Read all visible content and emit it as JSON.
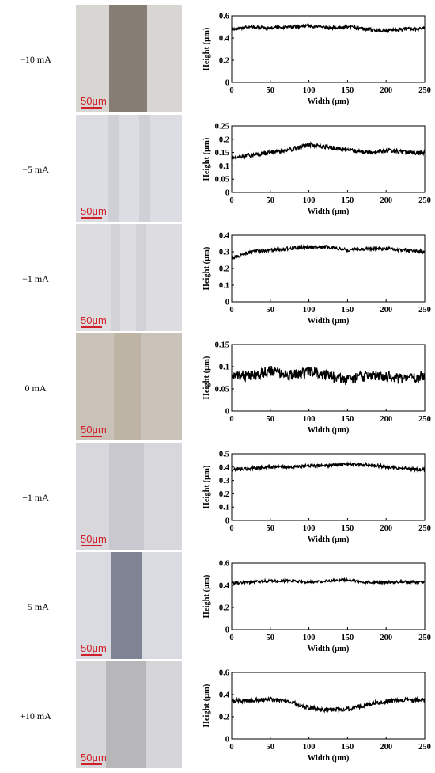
{
  "scale_label": "50μm",
  "chart_data": [
    {
      "type": "line",
      "condition": "−10 mA",
      "ylim": [
        0,
        0.6
      ],
      "yticks": [
        "0",
        "0.2",
        "0.4",
        "0.6"
      ],
      "xlim": [
        0,
        250
      ],
      "xticks": [
        "0",
        "50",
        "100",
        "150",
        "200",
        "250"
      ],
      "xlabel": "Width (μm)",
      "ylabel": "Height (μm)",
      "baseline": 0.48,
      "noise": 0.015,
      "x": [
        0,
        25,
        50,
        75,
        100,
        125,
        150,
        175,
        200,
        225,
        250
      ],
      "y": [
        0.48,
        0.5,
        0.49,
        0.5,
        0.51,
        0.49,
        0.5,
        0.48,
        0.47,
        0.48,
        0.49
      ]
    },
    {
      "type": "line",
      "condition": "−5 mA",
      "ylim": [
        0,
        0.25
      ],
      "yticks": [
        "0",
        "0.05",
        "0.1",
        "0.15",
        "0.2",
        "0.25"
      ],
      "xlim": [
        0,
        250
      ],
      "xticks": [
        "0",
        "50",
        "100",
        "150",
        "200",
        "250"
      ],
      "xlabel": "Width (μm)",
      "ylabel": "Height (μm)",
      "baseline": 0.15,
      "noise": 0.008,
      "x": [
        0,
        25,
        50,
        75,
        100,
        125,
        150,
        175,
        200,
        225,
        250
      ],
      "y": [
        0.13,
        0.14,
        0.15,
        0.16,
        0.18,
        0.17,
        0.16,
        0.15,
        0.16,
        0.15,
        0.15
      ]
    },
    {
      "type": "line",
      "condition": "−1 mA",
      "ylim": [
        0,
        0.4
      ],
      "yticks": [
        "0",
        "0.1",
        "0.2",
        "0.3",
        "0.4"
      ],
      "xlim": [
        0,
        250
      ],
      "xticks": [
        "0",
        "50",
        "100",
        "150",
        "200",
        "250"
      ],
      "xlabel": "Width (μm)",
      "ylabel": "Height (μm)",
      "baseline": 0.31,
      "noise": 0.01,
      "x": [
        0,
        25,
        50,
        75,
        100,
        125,
        150,
        175,
        200,
        225,
        250
      ],
      "y": [
        0.26,
        0.3,
        0.31,
        0.32,
        0.33,
        0.33,
        0.31,
        0.32,
        0.32,
        0.31,
        0.3
      ]
    },
    {
      "type": "line",
      "condition": "0 mA",
      "ylim": [
        0,
        0.15
      ],
      "yticks": [
        "0",
        "0.05",
        "0.1",
        "0.15"
      ],
      "xlim": [
        0,
        250
      ],
      "xticks": [
        "0",
        "50",
        "100",
        "150",
        "200",
        "250"
      ],
      "xlabel": "Width (μm)",
      "ylabel": "Height (μm)",
      "baseline": 0.08,
      "noise": 0.012,
      "x": [
        0,
        25,
        50,
        75,
        100,
        125,
        150,
        175,
        200,
        225,
        250
      ],
      "y": [
        0.08,
        0.08,
        0.09,
        0.08,
        0.09,
        0.08,
        0.07,
        0.08,
        0.08,
        0.07,
        0.08
      ]
    },
    {
      "type": "line",
      "condition": "+1 mA",
      "ylim": [
        0,
        0.5
      ],
      "yticks": [
        "0",
        "0.1",
        "0.2",
        "0.3",
        "0.4",
        "0.5"
      ],
      "xlim": [
        0,
        250
      ],
      "xticks": [
        "0",
        "50",
        "100",
        "150",
        "200",
        "250"
      ],
      "xlabel": "Width (μm)",
      "ylabel": "Height (μm)",
      "baseline": 0.4,
      "noise": 0.012,
      "x": [
        0,
        25,
        50,
        75,
        100,
        125,
        150,
        175,
        200,
        225,
        250
      ],
      "y": [
        0.38,
        0.39,
        0.4,
        0.4,
        0.41,
        0.41,
        0.42,
        0.42,
        0.4,
        0.39,
        0.38
      ]
    },
    {
      "type": "line",
      "condition": "+5 mA",
      "ylim": [
        0,
        0.6
      ],
      "yticks": [
        "0",
        "0.2",
        "0.4",
        "0.6"
      ],
      "xlim": [
        0,
        250
      ],
      "xticks": [
        "0",
        "50",
        "100",
        "150",
        "200",
        "250"
      ],
      "xlabel": "Width (μm)",
      "ylabel": "Height (μm)",
      "baseline": 0.43,
      "noise": 0.012,
      "x": [
        0,
        25,
        50,
        75,
        100,
        125,
        150,
        175,
        200,
        225,
        250
      ],
      "y": [
        0.42,
        0.43,
        0.44,
        0.44,
        0.43,
        0.44,
        0.45,
        0.43,
        0.43,
        0.43,
        0.43
      ]
    },
    {
      "type": "line",
      "condition": "+10 mA",
      "ylim": [
        0,
        0.6
      ],
      "yticks": [
        "0",
        "0.2",
        "0.4",
        "0.6"
      ],
      "xlim": [
        0,
        250
      ],
      "xticks": [
        "0",
        "50",
        "100",
        "150",
        "200",
        "250"
      ],
      "xlabel": "Width (μm)",
      "ylabel": "Height (μm)",
      "baseline": 0.34,
      "noise": 0.02,
      "x": [
        0,
        25,
        50,
        75,
        100,
        125,
        150,
        175,
        200,
        225,
        250
      ],
      "y": [
        0.34,
        0.35,
        0.36,
        0.34,
        0.28,
        0.26,
        0.27,
        0.31,
        0.34,
        0.35,
        0.35
      ]
    }
  ]
}
